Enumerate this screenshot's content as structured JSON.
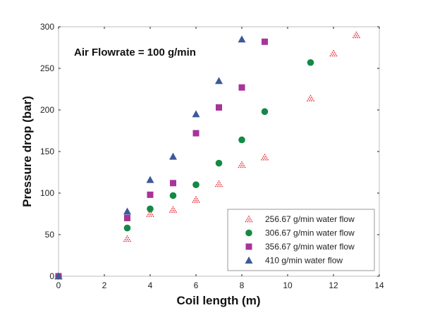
{
  "chart_data": {
    "type": "scatter",
    "xlabel": "Coil length (m)",
    "ylabel": "Pressure drop (bar)",
    "xlim": [
      0,
      14
    ],
    "ylim": [
      0,
      300
    ],
    "xticks": [
      "0",
      "2",
      "4",
      "6",
      "8",
      "10",
      "12",
      "14"
    ],
    "yticks": [
      "0",
      "50",
      "100",
      "150",
      "200",
      "250",
      "300"
    ],
    "annotation": "Air Flowrate = 100 g/min",
    "legend_position": "bottom-right",
    "series": [
      {
        "name": "256.67 g/min water flow",
        "marker": "dotted-triangle",
        "color": "#e8242c",
        "x": [
          0,
          3,
          4,
          5,
          6,
          7,
          8,
          9,
          11,
          12,
          13
        ],
        "y": [
          0,
          45,
          75,
          80,
          92,
          111,
          134,
          143,
          214,
          268,
          290
        ]
      },
      {
        "name": "306.67 g/min water flow",
        "marker": "circle",
        "color": "#128a45",
        "x": [
          0,
          3,
          4,
          5,
          6,
          7,
          8,
          9,
          11
        ],
        "y": [
          0,
          58,
          81,
          97,
          110,
          136,
          164,
          198,
          257
        ]
      },
      {
        "name": "356.67 g/min water flow",
        "marker": "square",
        "color": "#a8339a",
        "x": [
          0,
          3,
          4,
          5,
          6,
          7,
          8,
          9
        ],
        "y": [
          0,
          70,
          98,
          112,
          172,
          203,
          227,
          282
        ]
      },
      {
        "name": "410 g/min water flow",
        "marker": "triangle",
        "color": "#3b5a9a",
        "x": [
          0,
          3,
          4,
          5,
          6,
          7,
          8
        ],
        "y": [
          0,
          78,
          116,
          144,
          195,
          235,
          285
        ]
      }
    ]
  }
}
